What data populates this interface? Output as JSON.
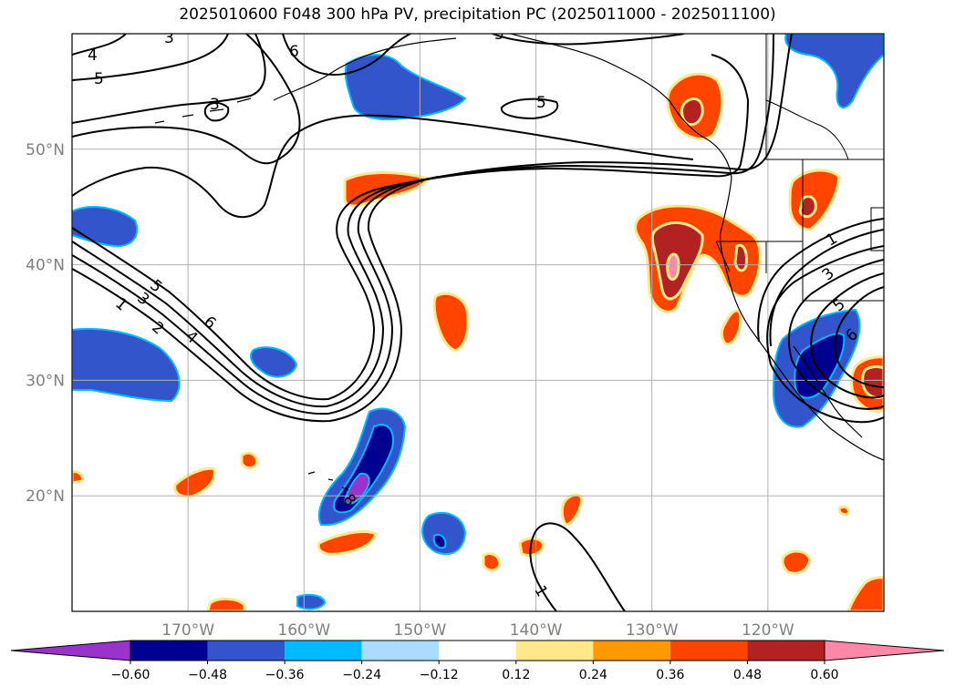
{
  "title": "2025010600 F048 300 hPa PV, precipitation PC (2025011000 - 2025011100)",
  "map": {
    "projection": "PlateCarree",
    "lon_range": [
      -180,
      -110
    ],
    "lat_range": [
      10,
      60
    ],
    "lat_ticks": [
      {
        "value": 20,
        "label": "20°N"
      },
      {
        "value": 30,
        "label": "30°N"
      },
      {
        "value": 40,
        "label": "40°N"
      },
      {
        "value": 50,
        "label": "50°N"
      }
    ],
    "lon_ticks": [
      {
        "value": -170,
        "label": "170°W"
      },
      {
        "value": -160,
        "label": "160°W"
      },
      {
        "value": -150,
        "label": "150°W"
      },
      {
        "value": -140,
        "label": "140°W"
      },
      {
        "value": -130,
        "label": "130°W"
      },
      {
        "value": -120,
        "label": "120°W"
      }
    ],
    "gridlines": true,
    "contour_labels": [
      "4",
      "5",
      "3",
      "3",
      "6",
      "5",
      "5",
      "5",
      "1",
      "3",
      "2",
      "4",
      "6",
      "1",
      "3",
      "5",
      "6",
      "1",
      "8"
    ]
  },
  "colorbar": {
    "extend": "both",
    "orientation": "horizontal",
    "levels": [
      -0.6,
      -0.48,
      -0.36,
      -0.24,
      -0.12,
      0.12,
      0.24,
      0.36,
      0.48,
      0.6
    ],
    "tick_labels": [
      "−0.60",
      "−0.48",
      "−0.36",
      "−0.24",
      "−0.12",
      "0.12",
      "0.24",
      "0.36",
      "0.48",
      "0.60"
    ],
    "colors": [
      "#9933cc",
      "#000090",
      "#3355cc",
      "#00bbff",
      "#aadcff",
      "#ffffff",
      "#ffe88a",
      "#ff9900",
      "#ff4400",
      "#b22222",
      "#ff88aa"
    ]
  }
}
